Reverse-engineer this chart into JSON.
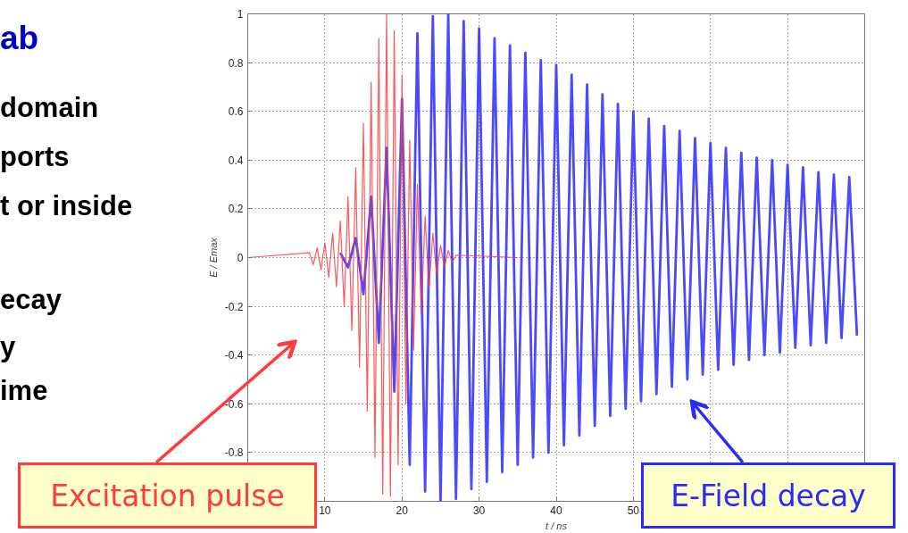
{
  "chart_data": {
    "type": "line",
    "xlabel": "t / ns",
    "ylabel": "E / Emax",
    "xlim": [
      0,
      80
    ],
    "ylim": [
      -1,
      1
    ],
    "xticks": [
      {
        "value": 0,
        "label": null
      },
      10,
      20,
      30,
      40,
      50,
      {
        "value": 60,
        "label": null
      },
      {
        "value": 70,
        "label": null
      },
      {
        "value": 80,
        "label": null
      }
    ],
    "yticks": [
      {
        "value": -1,
        "label": null
      },
      -0.8,
      -0.6,
      -0.4,
      -0.2,
      0,
      0.2,
      0.4,
      0.6,
      0.8,
      1
    ],
    "grid": true,
    "line_style": "solid",
    "series": [
      {
        "color": "#ff3b3b",
        "x": [
          0,
          8,
          8.5,
          9,
          9.5,
          10,
          10.5,
          11,
          11.5,
          12,
          12.5,
          13,
          13.5,
          14,
          14.5,
          15,
          15.5,
          16,
          16.5,
          17,
          17.5,
          18,
          18.5,
          19,
          19.5,
          20,
          20.5,
          21,
          21.5,
          22,
          22.5,
          23,
          23.5,
          24,
          24.5,
          25,
          25.5,
          26,
          26.5,
          27,
          35
        ],
        "values": [
          0,
          0.02,
          -0.03,
          0.04,
          -0.05,
          0.06,
          -0.08,
          0.1,
          -0.12,
          0.15,
          -0.2,
          0.25,
          -0.3,
          0.37,
          -0.45,
          0.55,
          -0.63,
          0.72,
          -0.82,
          0.9,
          -0.97,
          1.0,
          -0.98,
          0.93,
          -0.85,
          0.75,
          -0.6,
          0.48,
          -0.38,
          0.3,
          -0.23,
          0.17,
          -0.13,
          0.1,
          -0.07,
          0.05,
          -0.04,
          0.03,
          -0.02,
          0.01,
          0
        ]
      },
      {
        "color": "#2a2aff",
        "x": [
          12,
          13,
          14,
          15,
          16,
          17,
          18,
          19,
          20,
          21,
          22,
          23,
          24,
          25,
          26,
          27,
          28,
          29,
          30,
          31,
          32,
          33,
          34,
          35,
          36,
          37,
          38,
          39,
          40,
          41,
          42,
          43,
          44,
          45,
          46,
          47,
          48,
          49,
          50,
          51,
          52,
          53,
          54,
          55,
          56,
          57,
          58,
          59,
          60,
          61,
          62,
          63,
          64,
          65,
          66,
          67,
          68,
          69,
          70,
          71,
          72,
          73,
          74,
          75,
          76,
          77,
          78,
          79
        ],
        "values": [
          0.02,
          -0.04,
          0.08,
          -0.15,
          0.25,
          -0.35,
          0.45,
          -0.55,
          0.65,
          -0.85,
          0.92,
          -0.96,
          0.99,
          -1.0,
          1.0,
          -0.99,
          0.97,
          -0.95,
          0.94,
          -0.92,
          0.9,
          -0.88,
          0.87,
          -0.85,
          0.84,
          -0.82,
          0.81,
          -0.8,
          0.79,
          -0.77,
          0.75,
          -0.73,
          0.71,
          -0.69,
          0.67,
          -0.65,
          0.63,
          -0.62,
          0.6,
          -0.59,
          0.57,
          -0.56,
          0.54,
          -0.53,
          0.52,
          -0.5,
          0.49,
          -0.48,
          0.47,
          -0.46,
          0.45,
          -0.44,
          0.43,
          -0.42,
          0.41,
          -0.4,
          0.4,
          -0.39,
          0.38,
          -0.37,
          0.37,
          -0.36,
          0.35,
          -0.35,
          0.34,
          -0.33,
          0.33,
          -0.32
        ]
      }
    ],
    "annotations": [
      "ab",
      "domain",
      "ports",
      "t or inside",
      "ecay",
      "y",
      "ime",
      "Excitation pulse",
      "E-Field decay"
    ]
  }
}
